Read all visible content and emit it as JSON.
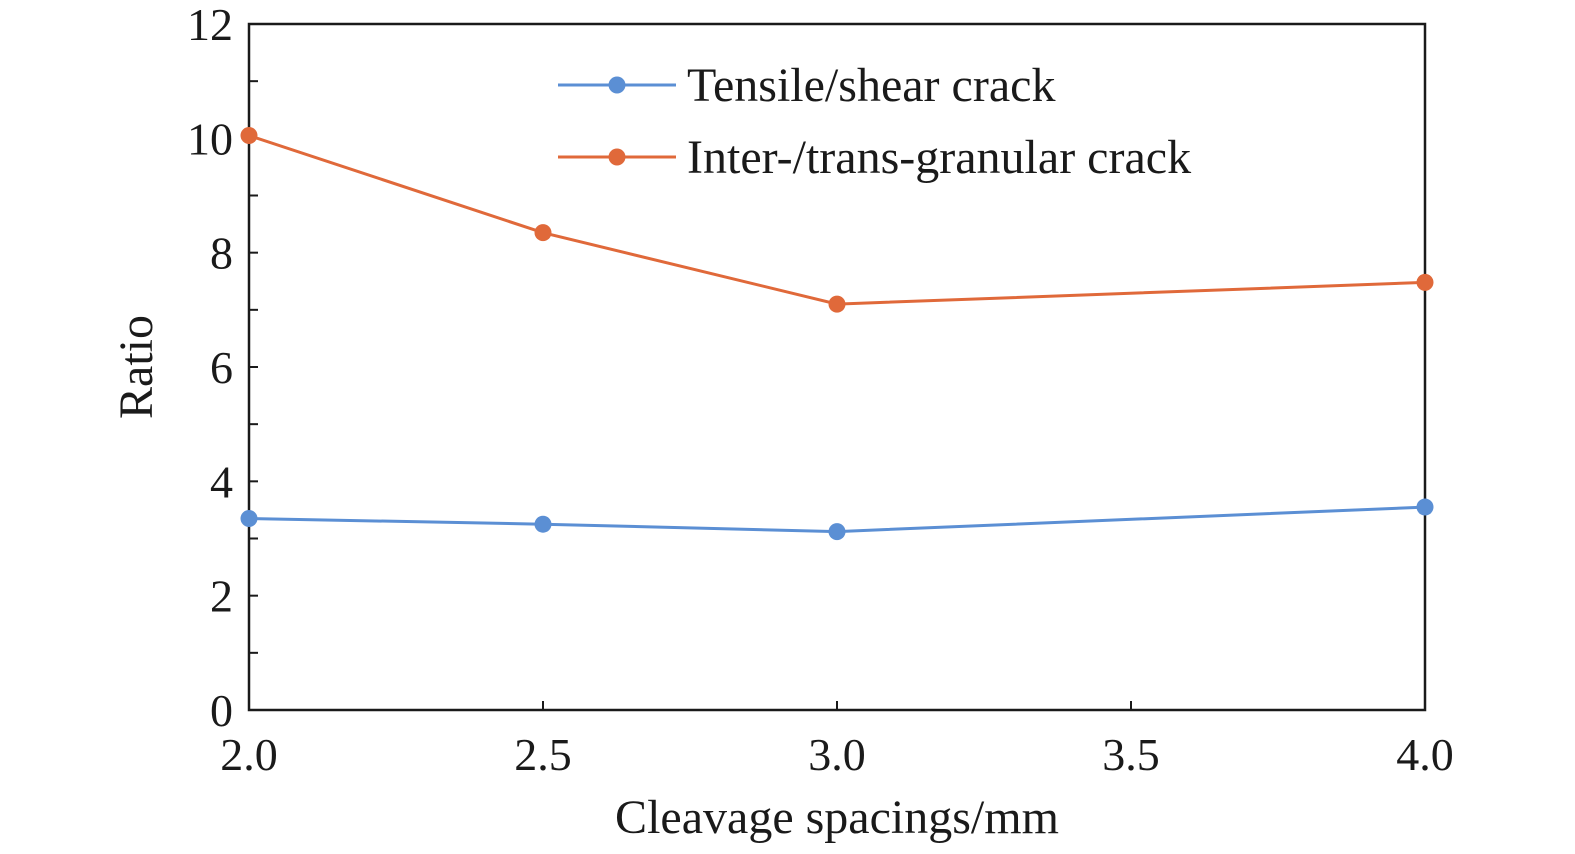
{
  "chart_data": {
    "type": "line",
    "title": "",
    "xlabel": "Cleavage spacings/mm",
    "ylabel": "Ratio",
    "x": [
      2.0,
      2.5,
      3.0,
      4.0
    ],
    "xlim": [
      2.0,
      4.0
    ],
    "ylim": [
      0,
      12
    ],
    "xticks": [
      "2.0",
      "2.5",
      "3.0",
      "3.5",
      "4.0"
    ],
    "yticks": [
      "0",
      "2",
      "4",
      "6",
      "8",
      "10",
      "12"
    ],
    "grid": false,
    "legend_position": "top-right",
    "series": [
      {
        "name": "Tensile/shear crack",
        "color": "#5b8fd4",
        "values": [
          3.35,
          3.25,
          3.12,
          3.55
        ]
      },
      {
        "name": "Inter-/trans-granular crack",
        "color": "#e0693a",
        "values": [
          10.05,
          8.35,
          7.1,
          7.48
        ]
      }
    ]
  }
}
